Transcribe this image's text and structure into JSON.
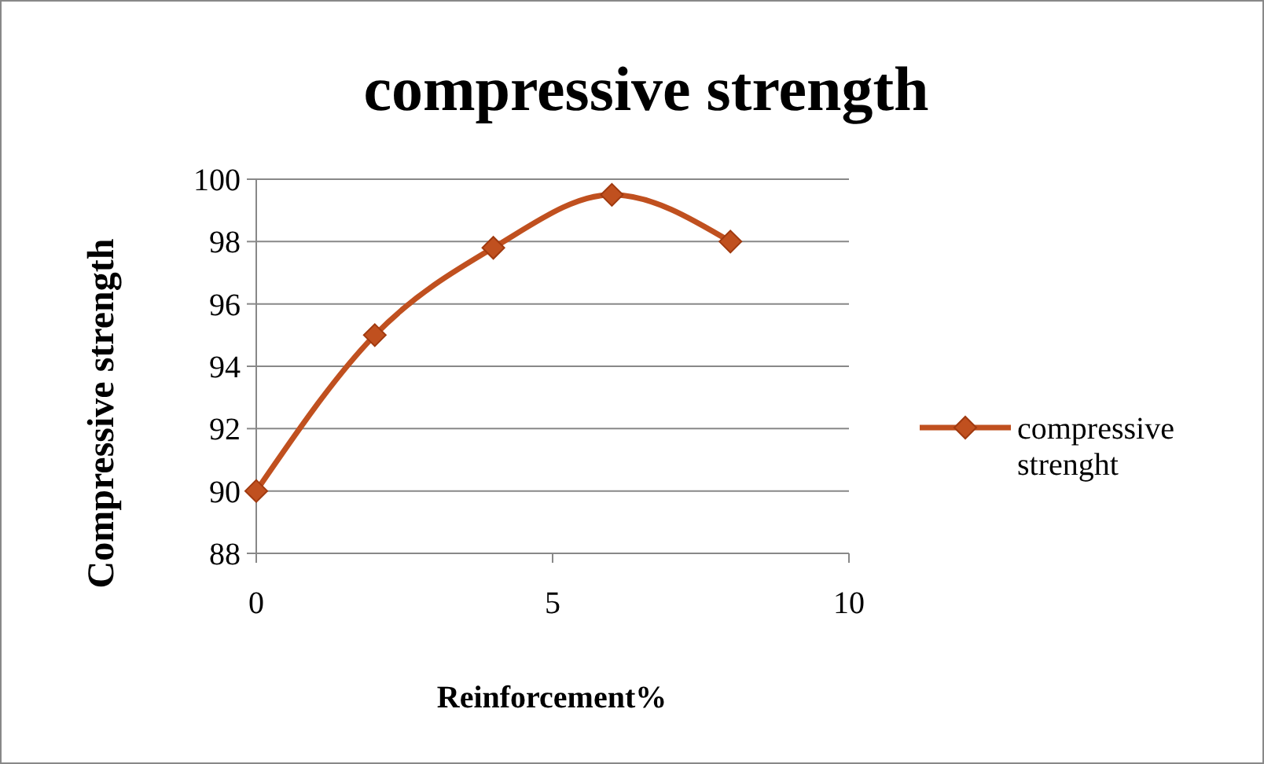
{
  "chart_data": {
    "type": "line",
    "title": "compressive strength",
    "xlabel": "Reinforcement%",
    "ylabel": "Compressive strength",
    "x": [
      0,
      2,
      4,
      6,
      8
    ],
    "series": [
      {
        "name": "compressive strenght",
        "color": "#c0501f",
        "values": [
          90,
          95,
          97.8,
          99.5,
          98
        ]
      }
    ],
    "xlim": [
      0,
      10
    ],
    "xticks": [
      0,
      5,
      10
    ],
    "ylim": [
      88,
      100
    ],
    "yticks": [
      88,
      90,
      92,
      94,
      96,
      98,
      100
    ],
    "grid": "y",
    "legend": "right",
    "marker": "diamond",
    "line_style": "solid"
  }
}
